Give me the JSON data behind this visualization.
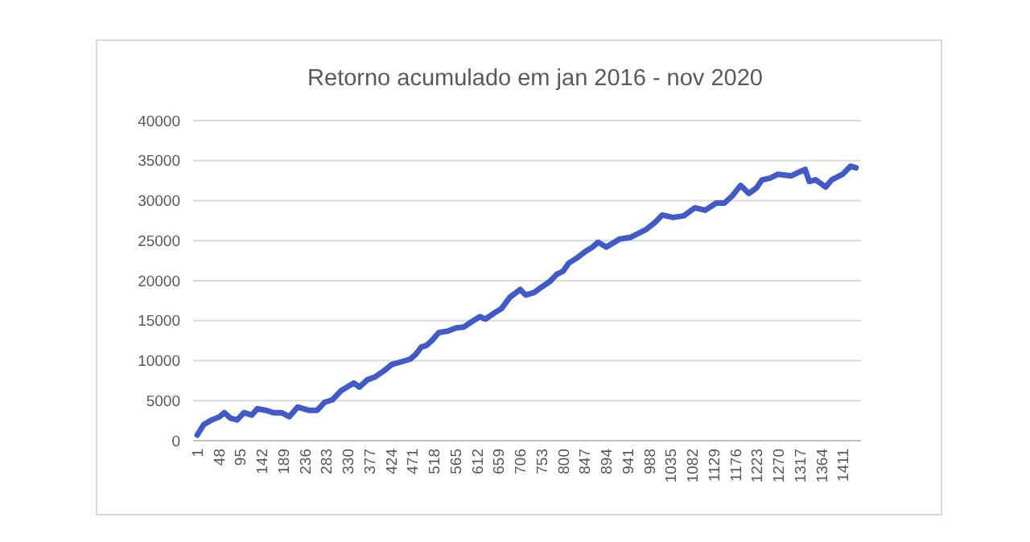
{
  "chart_data": {
    "type": "line",
    "title": "Retorno acumulado em jan 2016 - nov 2020",
    "x": [
      1,
      15,
      33,
      50,
      60,
      74,
      88,
      103,
      120,
      132,
      150,
      167,
      185,
      202,
      220,
      244,
      263,
      279,
      296,
      314,
      331,
      343,
      355,
      372,
      390,
      408,
      425,
      449,
      466,
      478,
      490,
      501,
      513,
      528,
      548,
      566,
      583,
      601,
      618,
      630,
      648,
      665,
      683,
      706,
      718,
      736,
      753,
      771,
      786,
      800,
      812,
      829,
      847,
      864,
      876,
      894,
      923,
      946,
      981,
      999,
      1016,
      1040,
      1063,
      1087,
      1110,
      1134,
      1152,
      1169,
      1187,
      1205,
      1222,
      1234,
      1251,
      1269,
      1298,
      1316,
      1328,
      1337,
      1351,
      1373,
      1386,
      1410,
      1427,
      1439
    ],
    "series": [
      {
        "color": "#4259c8",
        "values": [
          700,
          2000,
          2600,
          3000,
          3500,
          2800,
          2600,
          3500,
          3200,
          4000,
          3800,
          3500,
          3500,
          3000,
          4200,
          3800,
          3800,
          4800,
          5100,
          6200,
          6800,
          7200,
          6700,
          7600,
          8000,
          8700,
          9500,
          9900,
          10200,
          10800,
          11700,
          11900,
          12500,
          13500,
          13700,
          14100,
          14200,
          14900,
          15500,
          15200,
          15900,
          16500,
          17900,
          18900,
          18200,
          18500,
          19200,
          19900,
          20800,
          21200,
          22200,
          22800,
          23600,
          24200,
          24800,
          24200,
          25200,
          25400,
          26400,
          27200,
          28200,
          27900,
          28100,
          29100,
          28800,
          29700,
          29700,
          30600,
          31900,
          30900,
          31600,
          32600,
          32800,
          33300,
          33100,
          33600,
          33900,
          32400,
          32600,
          31700,
          32600,
          33300,
          34300,
          34100
        ]
      }
    ],
    "xlim": [
      -8,
      1450
    ],
    "xticks": [
      1,
      48,
      95,
      142,
      189,
      236,
      283,
      330,
      377,
      424,
      471,
      518,
      565,
      612,
      659,
      706,
      753,
      800,
      847,
      894,
      941,
      988,
      1035,
      1082,
      1129,
      1176,
      1223,
      1270,
      1317,
      1364,
      1411
    ],
    "ylim": [
      0,
      40000
    ],
    "yticks": [
      0,
      5000,
      10000,
      15000,
      20000,
      25000,
      30000,
      35000,
      40000
    ],
    "grid": "y",
    "marker": "none",
    "line_style": "solid"
  }
}
